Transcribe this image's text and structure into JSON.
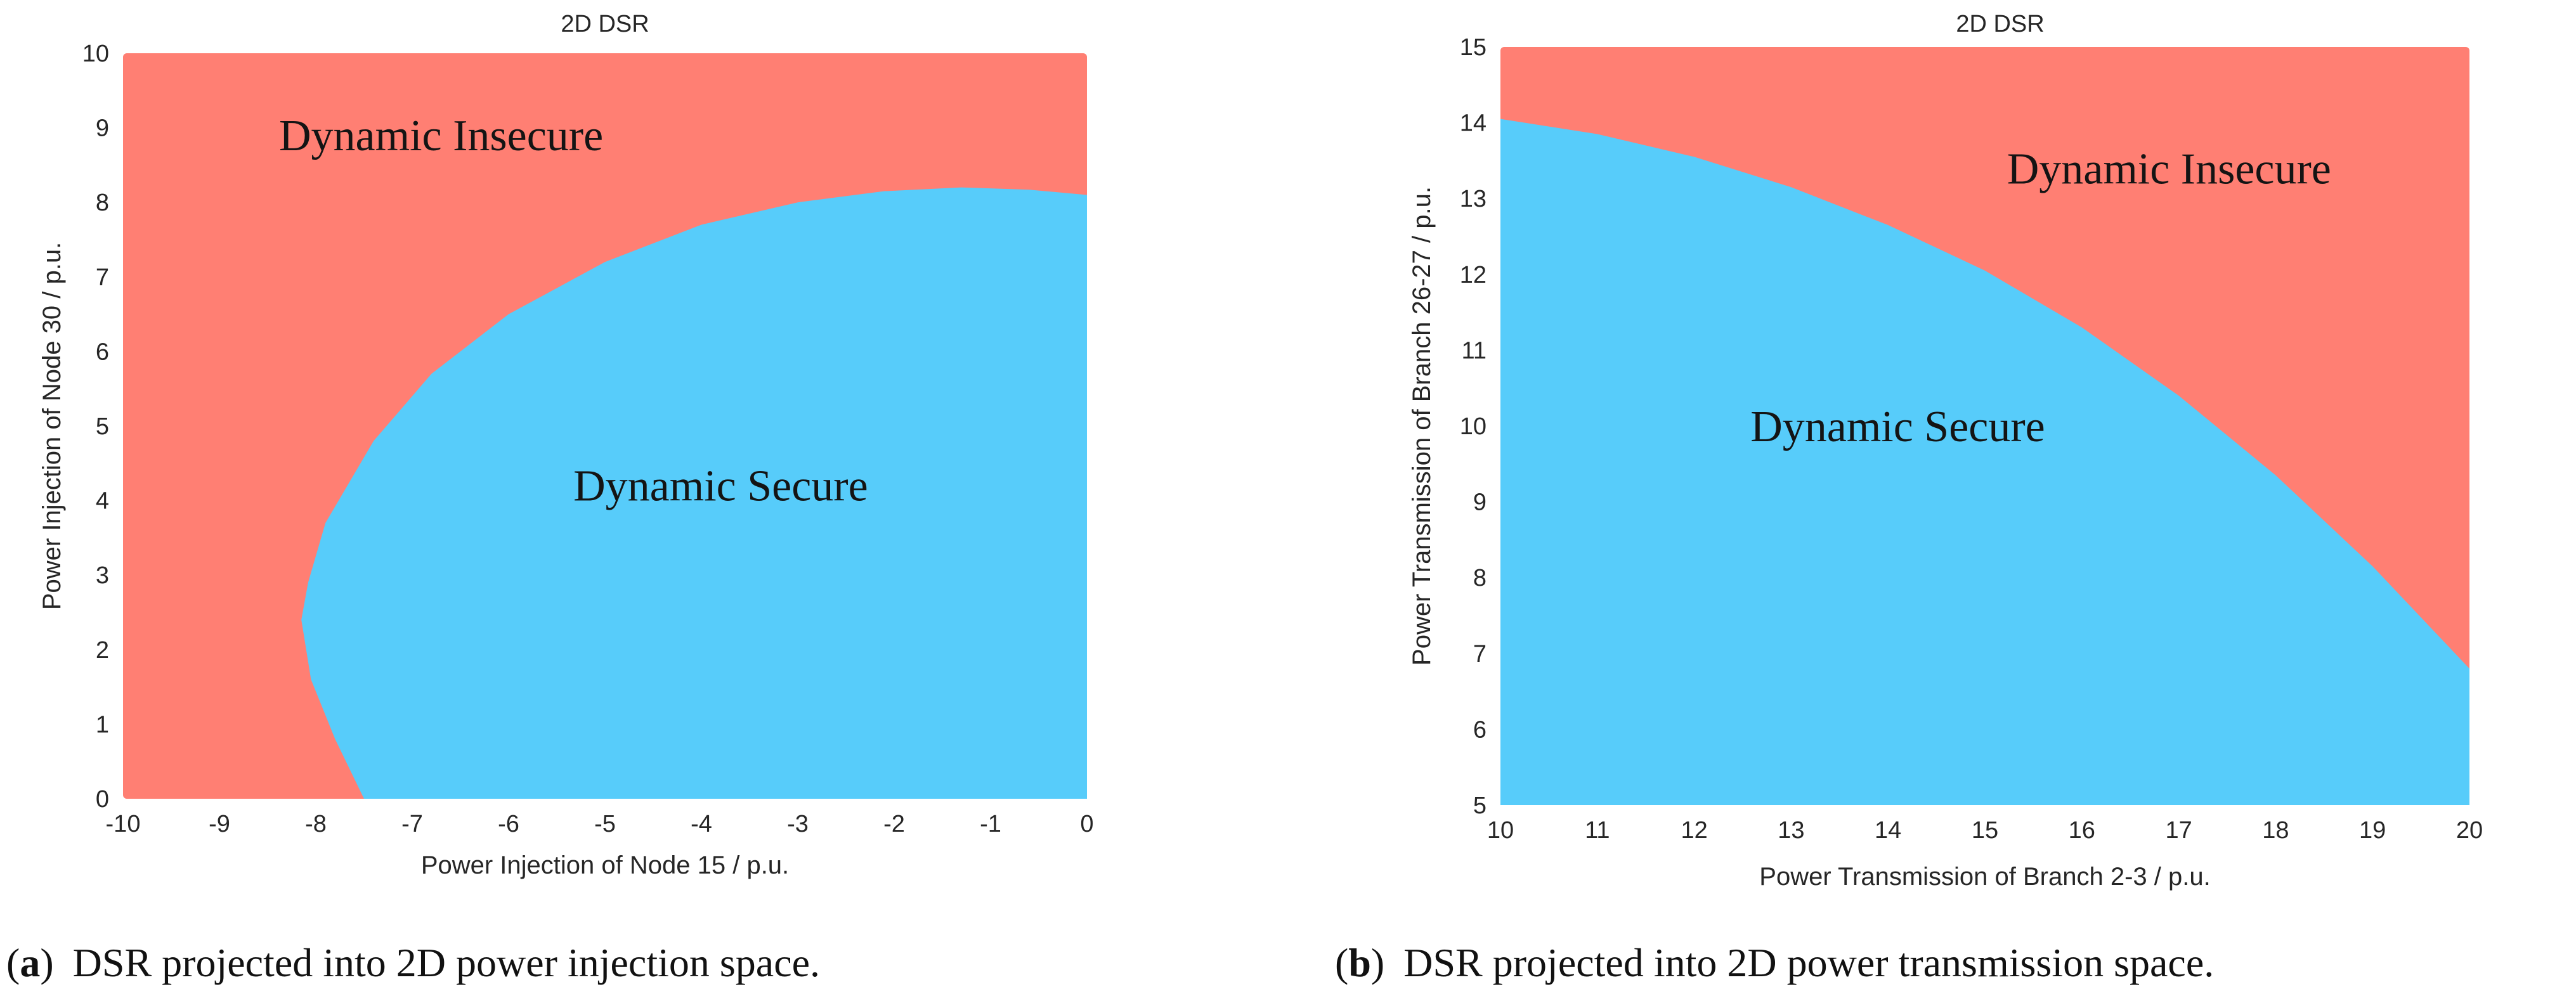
{
  "chart_data": [
    {
      "type": "area",
      "title": "2D DSR",
      "xlabel": "Power Injection of Node 15 / p.u.",
      "ylabel": "Power Injection of Node 30 / p.u.",
      "xlim": [
        -10,
        0
      ],
      "ylim": [
        0,
        10
      ],
      "xticks": [
        "-10",
        "-9",
        "-8",
        "-7",
        "-6",
        "-5",
        "-4",
        "-3",
        "-2",
        "-1",
        "0"
      ],
      "yticks": [
        "0",
        "1",
        "2",
        "3",
        "4",
        "5",
        "6",
        "7",
        "8",
        "9",
        "10"
      ],
      "background_region": {
        "name": "Dynamic Insecure",
        "color": "#FF7F73",
        "label_at": [
          -6.7,
          8.7
        ]
      },
      "secure_region": {
        "name": "Dynamic Secure",
        "color": "#57CCFA",
        "label_at": [
          -3.8,
          4.0
        ],
        "boundary": [
          {
            "x": 0,
            "y": 8.1
          },
          {
            "x": -0.6,
            "y": 8.17
          },
          {
            "x": -1.3,
            "y": 8.2
          },
          {
            "x": -2.1,
            "y": 8.15
          },
          {
            "x": -3.0,
            "y": 8.0
          },
          {
            "x": -4.0,
            "y": 7.7
          },
          {
            "x": -5.0,
            "y": 7.2
          },
          {
            "x": -6.0,
            "y": 6.5
          },
          {
            "x": -6.8,
            "y": 5.7
          },
          {
            "x": -7.4,
            "y": 4.8
          },
          {
            "x": -7.9,
            "y": 3.7
          },
          {
            "x": -8.08,
            "y": 2.9
          },
          {
            "x": -8.15,
            "y": 2.4
          },
          {
            "x": -8.05,
            "y": 1.6
          },
          {
            "x": -7.8,
            "y": 0.8
          },
          {
            "x": -7.5,
            "y": 0
          }
        ]
      },
      "caption_label": "(a)",
      "caption_text": "DSR projected into 2D power injection space."
    },
    {
      "type": "area",
      "title": "2D DSR",
      "xlabel": "Power Transmission of Branch 2-3 / p.u.",
      "ylabel": "Power Transmission of Branch 26-27 / p.u.",
      "xlim": [
        10,
        20
      ],
      "ylim": [
        5,
        15
      ],
      "xticks": [
        "10",
        "11",
        "12",
        "13",
        "14",
        "15",
        "16",
        "17",
        "18",
        "19",
        "20"
      ],
      "yticks": [
        "5",
        "6",
        "7",
        "8",
        "9",
        "10",
        "11",
        "12",
        "13",
        "14",
        "15"
      ],
      "background_region": {
        "name": "Dynamic Insecure",
        "color": "#FF7F73",
        "label_at": [
          16.9,
          13.2
        ]
      },
      "secure_region": {
        "name": "Dynamic Secure",
        "color": "#57CCFA",
        "label_at": [
          14.1,
          9.8
        ],
        "boundary": [
          {
            "x": 10,
            "y": 14.05
          },
          {
            "x": 11,
            "y": 13.85
          },
          {
            "x": 12,
            "y": 13.55
          },
          {
            "x": 13,
            "y": 13.15
          },
          {
            "x": 14,
            "y": 12.65
          },
          {
            "x": 15,
            "y": 12.05
          },
          {
            "x": 16,
            "y": 11.3
          },
          {
            "x": 17,
            "y": 10.4
          },
          {
            "x": 18,
            "y": 9.35
          },
          {
            "x": 19,
            "y": 8.15
          },
          {
            "x": 20,
            "y": 6.8
          }
        ]
      },
      "caption_label": "(b)",
      "caption_text": "DSR projected into 2D power transmission space."
    }
  ]
}
